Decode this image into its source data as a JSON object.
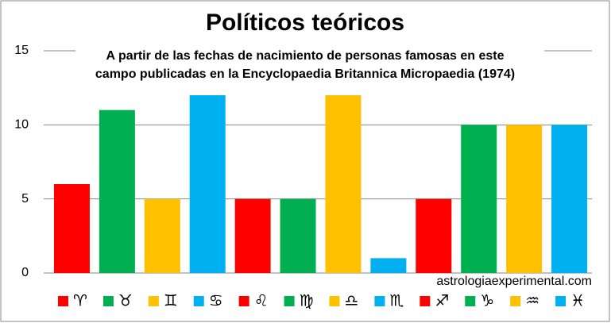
{
  "chart_data": {
    "type": "bar",
    "title": "Políticos teóricos",
    "subtitle": [
      "A partir de las fechas de nacimiento de personas famosas en este",
      "campo publicadas en la Encyclopaedia Britannica Micropaedia (1974)"
    ],
    "watermark": "astrologiaexperimental.com",
    "categories": [
      "♈",
      "♉",
      "♊",
      "♋",
      "♌",
      "♍",
      "♎",
      "♏",
      "♐",
      "♑",
      "♒",
      "♓"
    ],
    "values": [
      6,
      11,
      5,
      12,
      5,
      5,
      12,
      1,
      5,
      10,
      10,
      10
    ],
    "colors": [
      "#ff0000",
      "#00b050",
      "#ffc000",
      "#00b0f0",
      "#ff0000",
      "#00b050",
      "#ffc000",
      "#00b0f0",
      "#ff0000",
      "#00b050",
      "#ffc000",
      "#00b0f0"
    ],
    "ylim": [
      0,
      15
    ],
    "yticks": [
      0,
      5,
      10,
      15
    ],
    "grid": true
  }
}
